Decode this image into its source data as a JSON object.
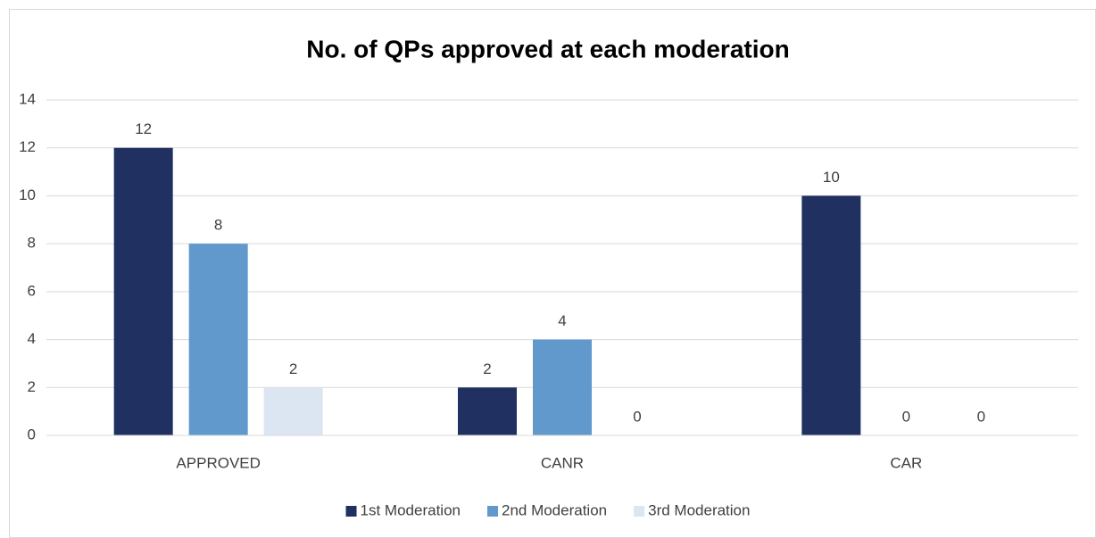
{
  "chart_data": {
    "type": "bar",
    "title": "No. of QPs approved at each moderation",
    "categories": [
      "APPROVED",
      "CANR",
      "CAR"
    ],
    "series": [
      {
        "name": "1st Moderation",
        "color": "#203060",
        "values": [
          12,
          2,
          10
        ]
      },
      {
        "name": "2nd Moderation",
        "color": "#6199cc",
        "values": [
          8,
          4,
          0
        ]
      },
      {
        "name": "3rd Moderation",
        "color": "#dce6f2",
        "values": [
          2,
          0,
          0
        ]
      }
    ],
    "ylim": [
      0,
      14
    ],
    "yticks": [
      0,
      2,
      4,
      6,
      8,
      10,
      12,
      14
    ],
    "grid": true,
    "legend": "bottom"
  }
}
